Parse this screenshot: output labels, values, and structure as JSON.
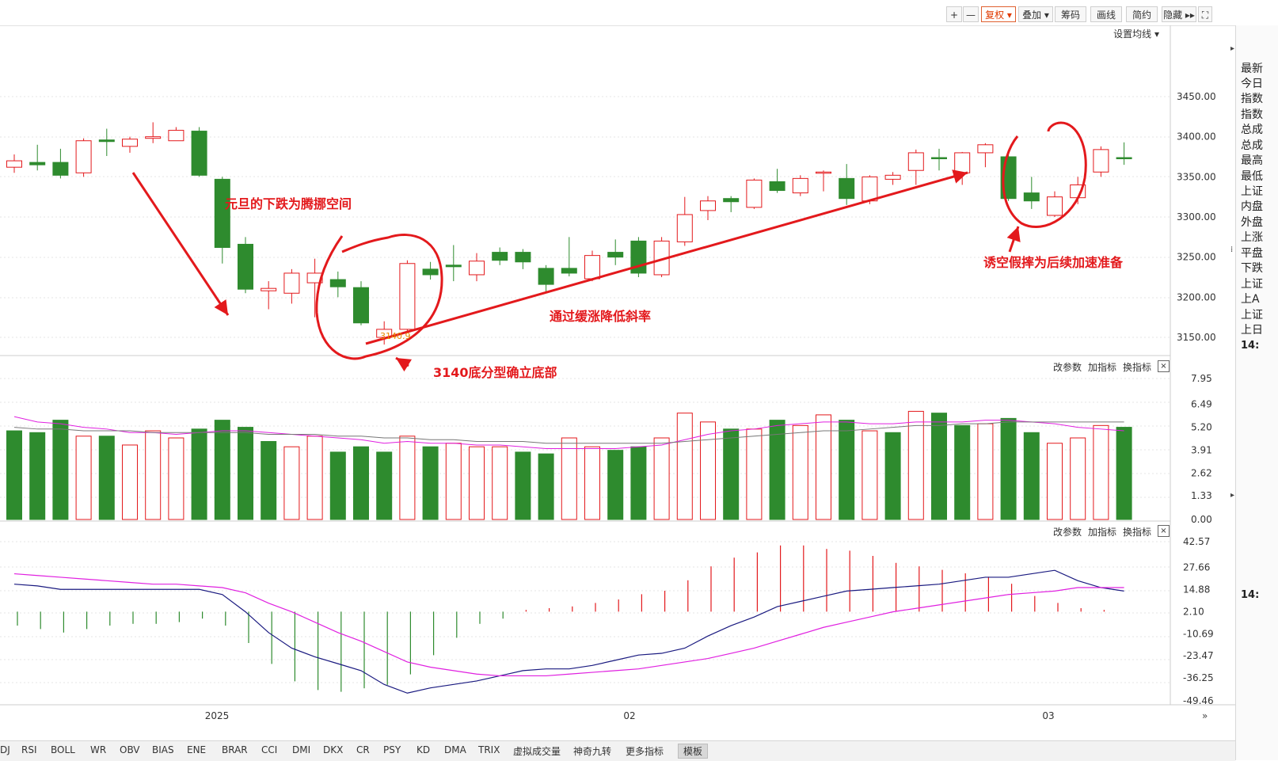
{
  "toolbar": {
    "buttons": [
      {
        "label": "+",
        "name": "zoom-in-button",
        "active": false
      },
      {
        "label": "—",
        "name": "zoom-out-button",
        "active": false
      },
      {
        "label": "复权 ▾",
        "name": "adjust-button",
        "active": true
      },
      {
        "label": "叠加 ▾",
        "name": "overlay-button",
        "active": false
      },
      {
        "label": "筹码",
        "name": "chips-button",
        "active": false
      },
      {
        "label": "画线",
        "name": "draw-line-button",
        "active": false
      },
      {
        "label": "简约",
        "name": "simple-button",
        "active": false
      },
      {
        "label": "隐藏 ▸▸",
        "name": "hide-button",
        "active": false
      },
      {
        "label": "⛶",
        "name": "fullscreen-button",
        "active": false
      }
    ],
    "set_ma": "设置均线 ▾"
  },
  "price_panel": {
    "ticks": [
      "3450.00",
      "3400.00",
      "3350.00",
      "3300.00",
      "3250.00",
      "3200.00",
      "3150.00"
    ],
    "low_label": "3140.9"
  },
  "volume_panel": {
    "header": {
      "change_param": "改参数",
      "add_indicator": "加指标",
      "switch_indicator": "换指标",
      "close": "×"
    },
    "ticks": [
      "7.95",
      "6.49",
      "5.20",
      "3.91",
      "2.62",
      "1.33",
      "0.00"
    ]
  },
  "macd_panel": {
    "header": {
      "change_param": "改参数",
      "add_indicator": "加指标",
      "switch_indicator": "换指标",
      "close": "×"
    },
    "ticks": [
      "42.57",
      "27.66",
      "14.88",
      "2.10",
      "-10.69",
      "-23.47",
      "-36.25",
      "-49.46"
    ]
  },
  "time_axis": {
    "labels": [
      "2025",
      "02",
      "03"
    ]
  },
  "annotations": {
    "a1": "元旦的下跌为腾挪空间",
    "a2": "3140底分型确立底部",
    "a3": "通过缓涨降低斜率",
    "a4": "诱空假摔为后续加速准备"
  },
  "tabs": [
    {
      "label": "DJ",
      "active": false
    },
    {
      "label": "RSI",
      "active": false
    },
    {
      "label": "BOLL",
      "active": false
    },
    {
      "label": "WR",
      "active": false
    },
    {
      "label": "OBV",
      "active": false
    },
    {
      "label": "BIAS",
      "active": false
    },
    {
      "label": "ENE",
      "active": false
    },
    {
      "label": "BRAR",
      "active": false
    },
    {
      "label": "CCI",
      "active": false
    },
    {
      "label": "DMI",
      "active": false
    },
    {
      "label": "DKX",
      "active": false
    },
    {
      "label": "CR",
      "active": false
    },
    {
      "label": "PSY",
      "active": false
    },
    {
      "label": "KD",
      "active": false
    },
    {
      "label": "DMA",
      "active": false
    },
    {
      "label": "TRIX",
      "active": false
    },
    {
      "label": "虚拟成交量",
      "active": false
    },
    {
      "label": "神奇九转",
      "active": false
    },
    {
      "label": "更多指标",
      "active": false
    },
    {
      "label": "模板",
      "active": true
    }
  ],
  "sidebar": {
    "items": [
      "最新",
      "今日",
      "指数",
      "指数",
      "总成",
      "总成",
      "最高",
      "最低",
      "上证",
      "内盘",
      "外盘",
      "上涨",
      "平盘",
      "下跌",
      "上证",
      "上A",
      "上证",
      "上日"
    ],
    "times": [
      "14:",
      "14:"
    ],
    "collapse_top": "▸",
    "collapse_mid": "⁞",
    "collapse_bot": "▸"
  },
  "colors": {
    "up": "#e3191c",
    "down": "#2e8b2e",
    "ma": "#e020e0",
    "dif": "#1a1a80",
    "annotation": "#e3191c"
  },
  "chart_data": [
    {
      "type": "candlestick",
      "title": "",
      "x_labels": [
        "2025",
        "02",
        "03"
      ],
      "ylim": [
        3140,
        3460
      ],
      "series": [
        {
          "values": [
            {
              "o": 3362,
              "c": 3370,
              "h": 3378,
              "l": 3355,
              "up": true
            },
            {
              "o": 3368,
              "c": 3365,
              "h": 3390,
              "l": 3358,
              "up": false
            },
            {
              "o": 3368,
              "c": 3352,
              "h": 3385,
              "l": 3348,
              "up": false
            },
            {
              "o": 3355,
              "c": 3395,
              "h": 3398,
              "l": 3350,
              "up": true
            },
            {
              "o": 3396,
              "c": 3394,
              "h": 3410,
              "l": 3376,
              "up": false
            },
            {
              "o": 3388,
              "c": 3397,
              "h": 3400,
              "l": 3380,
              "up": true
            },
            {
              "o": 3398,
              "c": 3400,
              "h": 3418,
              "l": 3392,
              "up": true
            },
            {
              "o": 3395,
              "c": 3408,
              "h": 3412,
              "l": 3395,
              "up": true
            },
            {
              "o": 3407,
              "c": 3352,
              "h": 3412,
              "l": 3350,
              "up": false
            },
            {
              "o": 3347,
              "c": 3262,
              "h": 3350,
              "l": 3242,
              "up": false
            },
            {
              "o": 3266,
              "c": 3210,
              "h": 3275,
              "l": 3205,
              "up": false
            },
            {
              "o": 3208,
              "c": 3211,
              "h": 3220,
              "l": 3185,
              "up": true
            },
            {
              "o": 3205,
              "c": 3230,
              "h": 3235,
              "l": 3192,
              "up": true
            },
            {
              "o": 3218,
              "c": 3230,
              "h": 3248,
              "l": 3175,
              "up": true
            },
            {
              "o": 3222,
              "c": 3213,
              "h": 3232,
              "l": 3200,
              "up": false
            },
            {
              "o": 3212,
              "c": 3168,
              "h": 3220,
              "l": 3165,
              "up": false
            },
            {
              "o": 3150,
              "c": 3160,
              "h": 3170,
              "l": 3141,
              "up": true
            },
            {
              "o": 3160,
              "c": 3242,
              "h": 3246,
              "l": 3155,
              "up": true
            },
            {
              "o": 3235,
              "c": 3228,
              "h": 3244,
              "l": 3222,
              "up": false
            },
            {
              "o": 3238,
              "c": 3240,
              "h": 3265,
              "l": 3220,
              "up": false
            },
            {
              "o": 3228,
              "c": 3245,
              "h": 3255,
              "l": 3220,
              "up": true
            },
            {
              "o": 3256,
              "c": 3246,
              "h": 3262,
              "l": 3240,
              "up": false
            },
            {
              "o": 3256,
              "c": 3244,
              "h": 3260,
              "l": 3235,
              "up": false
            },
            {
              "o": 3236,
              "c": 3216,
              "h": 3240,
              "l": 3205,
              "up": false
            },
            {
              "o": 3236,
              "c": 3230,
              "h": 3275,
              "l": 3226,
              "up": false
            },
            {
              "o": 3223,
              "c": 3252,
              "h": 3258,
              "l": 3220,
              "up": true
            },
            {
              "o": 3256,
              "c": 3250,
              "h": 3272,
              "l": 3240,
              "up": false
            },
            {
              "o": 3270,
              "c": 3230,
              "h": 3275,
              "l": 3225,
              "up": false
            },
            {
              "o": 3228,
              "c": 3270,
              "h": 3275,
              "l": 3225,
              "up": true
            },
            {
              "o": 3269,
              "c": 3303,
              "h": 3325,
              "l": 3264,
              "up": true
            },
            {
              "o": 3308,
              "c": 3320,
              "h": 3326,
              "l": 3296,
              "up": true
            },
            {
              "o": 3323,
              "c": 3319,
              "h": 3326,
              "l": 3306,
              "up": false
            },
            {
              "o": 3312,
              "c": 3346,
              "h": 3348,
              "l": 3310,
              "up": true
            },
            {
              "o": 3344,
              "c": 3333,
              "h": 3360,
              "l": 3330,
              "up": false
            },
            {
              "o": 3330,
              "c": 3348,
              "h": 3352,
              "l": 3326,
              "up": true
            },
            {
              "o": 3355,
              "c": 3356,
              "h": 3358,
              "l": 3332,
              "up": true
            },
            {
              "o": 3348,
              "c": 3323,
              "h": 3366,
              "l": 3315,
              "up": false
            },
            {
              "o": 3320,
              "c": 3350,
              "h": 3352,
              "l": 3316,
              "up": true
            },
            {
              "o": 3347,
              "c": 3352,
              "h": 3356,
              "l": 3340,
              "up": true
            },
            {
              "o": 3358,
              "c": 3380,
              "h": 3384,
              "l": 3340,
              "up": true
            },
            {
              "o": 3373,
              "c": 3374,
              "h": 3385,
              "l": 3358,
              "up": false
            },
            {
              "o": 3355,
              "c": 3380,
              "h": 3381,
              "l": 3340,
              "up": true
            },
            {
              "o": 3380,
              "c": 3390,
              "h": 3392,
              "l": 3362,
              "up": true
            },
            {
              "o": 3375,
              "c": 3323,
              "h": 3380,
              "l": 3320,
              "up": false
            },
            {
              "o": 3330,
              "c": 3320,
              "h": 3350,
              "l": 3310,
              "up": false
            },
            {
              "o": 3302,
              "c": 3325,
              "h": 3332,
              "l": 3300,
              "up": true
            },
            {
              "o": 3324,
              "c": 3340,
              "h": 3350,
              "l": 3316,
              "up": true
            },
            {
              "o": 3356,
              "c": 3384,
              "h": 3388,
              "l": 3350,
              "up": true
            },
            {
              "o": 3374,
              "c": 3373,
              "h": 3393,
              "l": 3365,
              "up": false
            }
          ]
        }
      ]
    },
    {
      "type": "bar",
      "title": "",
      "ylim": [
        0,
        7.95
      ],
      "series": [
        {
          "values": [
            5.0,
            4.9,
            5.6,
            4.7,
            4.7,
            4.2,
            5.0,
            4.6,
            5.1,
            5.6,
            5.2,
            4.4,
            4.1,
            4.7,
            3.8,
            4.1,
            3.8,
            4.7,
            4.1,
            4.3,
            4.1,
            4.1,
            3.8,
            3.7,
            4.6,
            4.1,
            3.9,
            4.1,
            4.6,
            6.0,
            5.5,
            5.1,
            5.1,
            5.6,
            5.3,
            5.9,
            5.6,
            5.0,
            4.9,
            6.1,
            6.0,
            5.3,
            5.4,
            5.7,
            4.9,
            4.3,
            4.6,
            5.3,
            5.2
          ],
          "up": [
            false,
            false,
            false,
            true,
            false,
            true,
            true,
            true,
            false,
            false,
            false,
            false,
            true,
            true,
            false,
            false,
            false,
            true,
            false,
            true,
            true,
            true,
            false,
            false,
            true,
            true,
            false,
            false,
            true,
            true,
            true,
            false,
            true,
            false,
            true,
            true,
            false,
            true,
            false,
            true,
            false,
            false,
            true,
            false,
            false,
            true,
            true,
            true,
            false
          ]
        },
        {
          "values": [
            5.8,
            5.5,
            5.4,
            5.2,
            5.1,
            4.9,
            4.9,
            4.8,
            4.9,
            5.0,
            5.0,
            4.9,
            4.8,
            4.7,
            4.6,
            4.5,
            4.3,
            4.4,
            4.3,
            4.3,
            4.2,
            4.2,
            4.1,
            4.0,
            4.0,
            4.0,
            4.0,
            4.1,
            4.2,
            4.5,
            4.8,
            5.0,
            5.1,
            5.3,
            5.4,
            5.5,
            5.5,
            5.4,
            5.4,
            5.5,
            5.5,
            5.5,
            5.6,
            5.6,
            5.5,
            5.4,
            5.2,
            5.1,
            5.0
          ]
        },
        {
          "values": [
            5.2,
            5.1,
            5.1,
            5.0,
            5.0,
            5.0,
            4.9,
            4.9,
            4.9,
            4.9,
            4.9,
            4.8,
            4.8,
            4.8,
            4.7,
            4.7,
            4.6,
            4.6,
            4.5,
            4.5,
            4.4,
            4.4,
            4.4,
            4.3,
            4.3,
            4.3,
            4.3,
            4.3,
            4.3,
            4.4,
            4.5,
            4.6,
            4.7,
            4.8,
            4.9,
            5.0,
            5.0,
            5.1,
            5.2,
            5.3,
            5.3,
            5.4,
            5.4,
            5.5,
            5.5,
            5.5,
            5.5,
            5.5,
            5.5
          ]
        }
      ]
    },
    {
      "type": "line",
      "title": "",
      "ylim": [
        -49.46,
        42.57
      ],
      "series": [
        {
          "values": [
            18,
            17,
            15,
            15,
            15,
            15,
            15,
            15,
            15,
            12,
            2,
            -10,
            -19,
            -24,
            -28,
            -32,
            -40,
            -45,
            -42,
            -40,
            -38,
            -35,
            -32,
            -31,
            -31,
            -29,
            -26,
            -23,
            -22,
            -19,
            -12,
            -6,
            -1,
            5,
            8,
            11,
            14,
            15,
            16,
            17,
            18,
            20,
            22,
            22,
            24,
            26,
            20,
            16,
            14
          ]
        },
        {
          "values": [
            24,
            23,
            22,
            21,
            20,
            19,
            18,
            18,
            17,
            16,
            13,
            7,
            2,
            -4,
            -10,
            -15,
            -21,
            -27,
            -30,
            -32,
            -34,
            -35,
            -35,
            -35,
            -34,
            -33,
            -32,
            -31,
            -29,
            -27,
            -25,
            -22,
            -19,
            -15,
            -11,
            -7,
            -4,
            -1,
            2,
            4,
            6,
            8,
            10,
            12,
            13,
            14,
            16,
            16,
            16
          ]
        },
        {
          "values": [
            -8,
            -10,
            -12,
            -10,
            -8,
            -7,
            -7,
            -6,
            -4,
            -8,
            -18,
            -30,
            -40,
            -45,
            -46,
            -44,
            -42,
            -36,
            -25,
            -15,
            -7,
            -4,
            1,
            2,
            3,
            5,
            7,
            10,
            12,
            18,
            26,
            31,
            34,
            38,
            38,
            36,
            35,
            32,
            28,
            26,
            24,
            22,
            20,
            16,
            9,
            5,
            2,
            1,
            0
          ]
        }
      ]
    }
  ]
}
